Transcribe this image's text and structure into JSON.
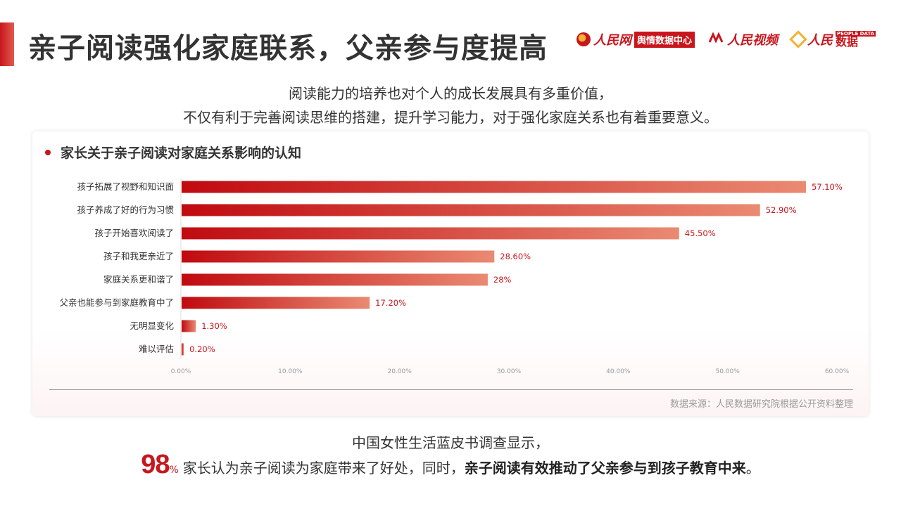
{
  "header": {
    "title": "亲子阅读强化家庭联系，父亲参与度提高",
    "logos": {
      "people_cn_script": "人民网",
      "people_cn_small": "people.cn",
      "yuqing_box": "舆情数据中心",
      "people_video_script": "人民视频",
      "people_data_script": "人民",
      "people_data_small": "PEOPLE DATA",
      "people_data_text": "数据"
    }
  },
  "intro": {
    "line1": "阅读能力的培养也对个人的成长发展具有多重价值，",
    "line2": "不仅有利于完善阅读思维的搭建，提升学习能力，对于强化家庭关系也有着重要意义。"
  },
  "card": {
    "title": "家长关于亲子阅读对家庭关系影响的认知",
    "source": "数据来源：人民数据研究院根据公开资料整理"
  },
  "colors": {
    "accent": "#c8161d",
    "bar_start": "#c00a10",
    "bar_end": "#ea8a72"
  },
  "chart_data": {
    "type": "bar",
    "orientation": "horizontal",
    "categories": [
      "孩子拓展了视野和知识面",
      "孩子养成了好的行为习惯",
      "孩子开始喜欢阅读了",
      "孩子和我更亲近了",
      "家庭关系更和谐了",
      "父亲也能参与到家庭教育中了",
      "无明显变化",
      "难以评估"
    ],
    "values": [
      57.1,
      52.9,
      45.5,
      28.6,
      28,
      17.2,
      1.3,
      0.2
    ],
    "value_labels": [
      "57.10%",
      "52.90%",
      "45.50%",
      "28.60%",
      "28%",
      "17.20%",
      "1.30%",
      "0.20%"
    ],
    "xlim": [
      0,
      60
    ],
    "x_ticks": [
      "0.00%",
      "10.00%",
      "20.00%",
      "30.00%",
      "40.00%",
      "50.00%",
      "60.00%"
    ],
    "grid": false,
    "legend": "none"
  },
  "summary": {
    "line1": "中国女性生活蓝皮书调查显示，",
    "big_number": "98",
    "percent": "%",
    "text_plain": "家长认为亲子阅读为家庭带来了好处，同时，",
    "text_bold": "亲子阅读有效推动了父亲参与到孩子教育中来",
    "text_end": "。"
  }
}
